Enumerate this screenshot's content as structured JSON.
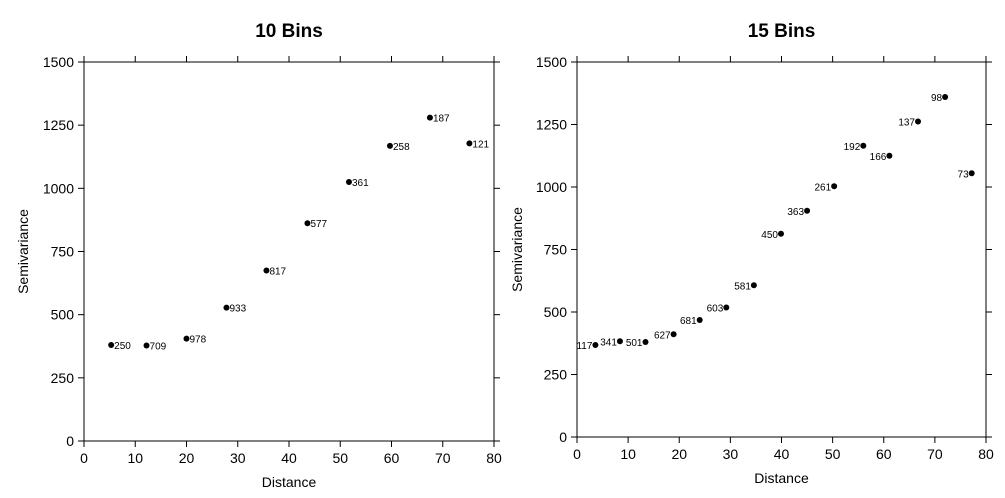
{
  "chart_data": [
    {
      "type": "scatter",
      "title": "10 Bins",
      "xlabel": "Distance",
      "ylabel": "Semivariance",
      "xlim": [
        0,
        80
      ],
      "ylim": [
        0,
        1500
      ],
      "xticks": [
        "0",
        "10",
        "20",
        "30",
        "40",
        "50",
        "60",
        "70",
        "80"
      ],
      "yticks": [
        "0",
        "250",
        "500",
        "750",
        "1000",
        "1250",
        "1500"
      ],
      "grid": false,
      "points": [
        {
          "x": 5.3,
          "y": 380,
          "label": "250"
        },
        {
          "x": 12.2,
          "y": 378,
          "label": "709"
        },
        {
          "x": 20.0,
          "y": 405,
          "label": "978"
        },
        {
          "x": 27.8,
          "y": 528,
          "label": "933"
        },
        {
          "x": 35.6,
          "y": 675,
          "label": "817"
        },
        {
          "x": 43.6,
          "y": 862,
          "label": "577"
        },
        {
          "x": 51.7,
          "y": 1025,
          "label": "361"
        },
        {
          "x": 59.7,
          "y": 1168,
          "label": "258"
        },
        {
          "x": 67.5,
          "y": 1280,
          "label": "187"
        },
        {
          "x": 75.2,
          "y": 1178,
          "label": "121"
        }
      ]
    },
    {
      "type": "scatter",
      "title": "15 Bins",
      "xlabel": "Distance",
      "ylabel": "Semivariance",
      "xlim": [
        0,
        80
      ],
      "ylim": [
        0,
        1500
      ],
      "xticks": [
        "0",
        "10",
        "20",
        "30",
        "40",
        "50",
        "60",
        "70",
        "80"
      ],
      "yticks": [
        "0",
        "250",
        "500",
        "750",
        "1000",
        "1250",
        "1500"
      ],
      "grid": false,
      "points": [
        {
          "x": 3.6,
          "y": 368,
          "label": "117"
        },
        {
          "x": 8.4,
          "y": 383,
          "label": "341"
        },
        {
          "x": 13.4,
          "y": 380,
          "label": "501"
        },
        {
          "x": 18.9,
          "y": 411,
          "label": "627"
        },
        {
          "x": 24.0,
          "y": 468,
          "label": "681"
        },
        {
          "x": 29.2,
          "y": 518,
          "label": "603"
        },
        {
          "x": 34.6,
          "y": 607,
          "label": "581"
        },
        {
          "x": 39.9,
          "y": 813,
          "label": "450"
        },
        {
          "x": 45.0,
          "y": 905,
          "label": "363"
        },
        {
          "x": 50.3,
          "y": 1003,
          "label": "261"
        },
        {
          "x": 56.0,
          "y": 1165,
          "label": "192"
        },
        {
          "x": 61.1,
          "y": 1125,
          "label": "166"
        },
        {
          "x": 66.7,
          "y": 1262,
          "label": "137"
        },
        {
          "x": 72.0,
          "y": 1360,
          "label": "98"
        },
        {
          "x": 77.2,
          "y": 1055,
          "label": "73"
        }
      ]
    }
  ]
}
